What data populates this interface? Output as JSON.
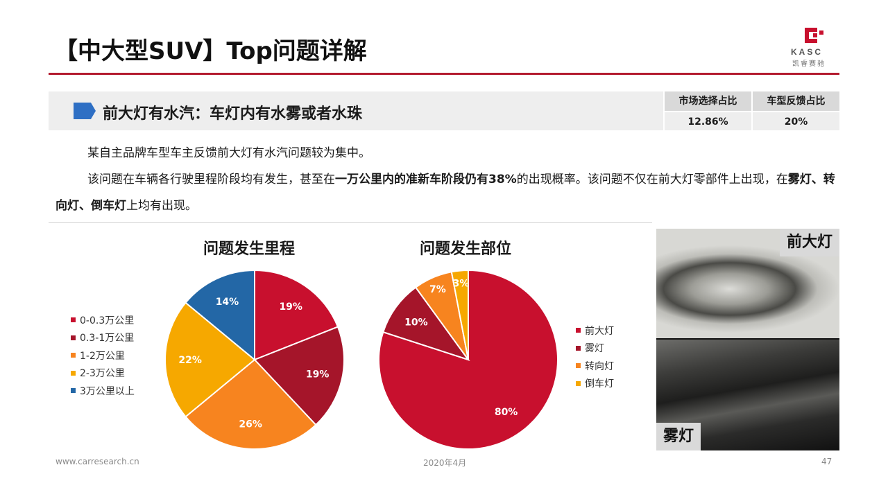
{
  "header": {
    "title": "【中大型SUV】Top问题详解",
    "logo_text": "KASC",
    "logo_sub": "凯睿赛驰"
  },
  "issue": {
    "text": "前大灯有水汽：车灯内有水雾或者水珠"
  },
  "stats": {
    "headers": [
      "市场选择占比",
      "车型反馈占比"
    ],
    "values": [
      "12.86%",
      "20%"
    ]
  },
  "body": {
    "p1": "某自主品牌车型车主反馈前大灯有水汽问题较为集中。",
    "p2_a": "该问题在车辆各行驶里程阶段均有发生，甚至在",
    "p2_b": "一万公里内的准新车阶段仍有38%",
    "p2_c": "的出现概率。该问题不仅在前大灯零部件上出现，在",
    "p2_d": "雾灯、转向灯、倒车灯",
    "p2_e": "上均有出现。"
  },
  "chart_data": [
    {
      "type": "pie",
      "title": "问题发生里程",
      "categories": [
        "0-0.3万公里",
        "0.3-1万公里",
        "1-2万公里",
        "2-3万公里",
        "3万公里以上"
      ],
      "values": [
        19,
        19,
        26,
        22,
        14
      ],
      "labels": [
        "19%",
        "19%",
        "26%",
        "22%",
        "14%"
      ],
      "colors": [
        "#c8102e",
        "#a5152a",
        "#f7841f",
        "#f6a800",
        "#2367a6"
      ],
      "legend": "left"
    },
    {
      "type": "pie",
      "title": "问题发生部位",
      "categories": [
        "前大灯",
        "雾灯",
        "转向灯",
        "倒车灯"
      ],
      "values": [
        80,
        10,
        7,
        3
      ],
      "labels": [
        "80%",
        "10%",
        "7%",
        "3%"
      ],
      "colors": [
        "#c8102e",
        "#a5152a",
        "#f7841f",
        "#f6a800"
      ],
      "legend": "right"
    }
  ],
  "photos": {
    "top_label": "前大灯",
    "bottom_label": "雾灯"
  },
  "footer": {
    "site": "www.carresearch.cn",
    "date": "2020年4月",
    "page": "47"
  }
}
